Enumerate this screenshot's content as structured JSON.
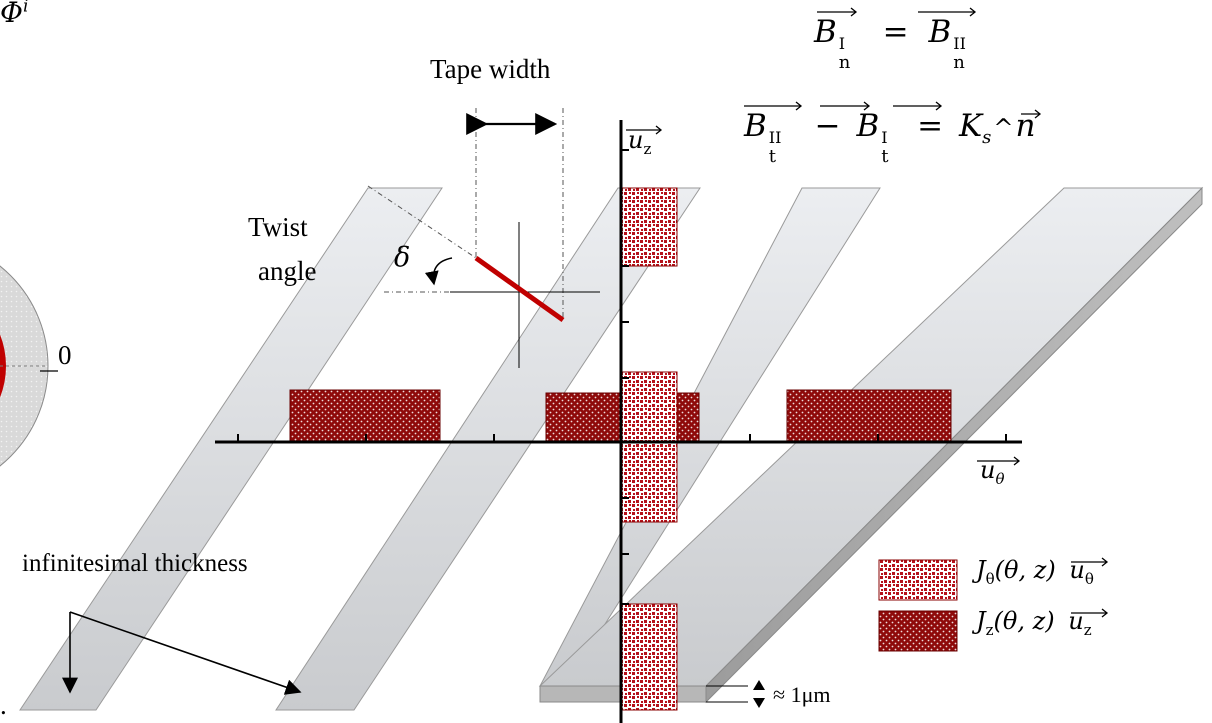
{
  "labels": {
    "phi_top": "Φ",
    "phi_top_sup": "i",
    "tape_width": "Tape width",
    "twist_line1": "Twist",
    "twist_line2": "angle",
    "delta": "δ",
    "zero": "0",
    "infinitesimal": "infinitesimal thickness",
    "thickness_approx": "≈ 1μm",
    "u_z_axis": "u",
    "u_z_sub": "z",
    "u_theta_axis": "u",
    "u_theta_sub": "θ",
    "dot": "."
  },
  "equations": {
    "eq1": {
      "lhs": "B",
      "lhs_sub": "n",
      "lhs_sup": "I",
      "op": "=",
      "rhs": "B",
      "rhs_sub": "n",
      "rhs_sup": "II"
    },
    "eq2": {
      "a": "B",
      "a_sub": "t",
      "a_sup": "II",
      "minus": "−",
      "b": "B",
      "b_sub": "t",
      "b_sup": "I",
      "eq": "=",
      "k": "K",
      "k_sub": "s",
      "wedge": "^",
      "n": "n"
    }
  },
  "legend": [
    {
      "symbol": "J",
      "sub": "θ",
      "args": "(θ, z)",
      "vec": "u",
      "vec_sub": "θ",
      "pattern": "checker"
    },
    {
      "symbol": "J",
      "sub": "z",
      "args": "(θ, z)",
      "vec": "u",
      "vec_sub": "z",
      "pattern": "dots"
    }
  ],
  "colors": {
    "dark_red": "#8e0a0a",
    "mid_red": "#b5121b",
    "tape_gray": "#e1e3e6",
    "tape_edge": "#9a9a9a",
    "twist_red": "#c00000"
  }
}
